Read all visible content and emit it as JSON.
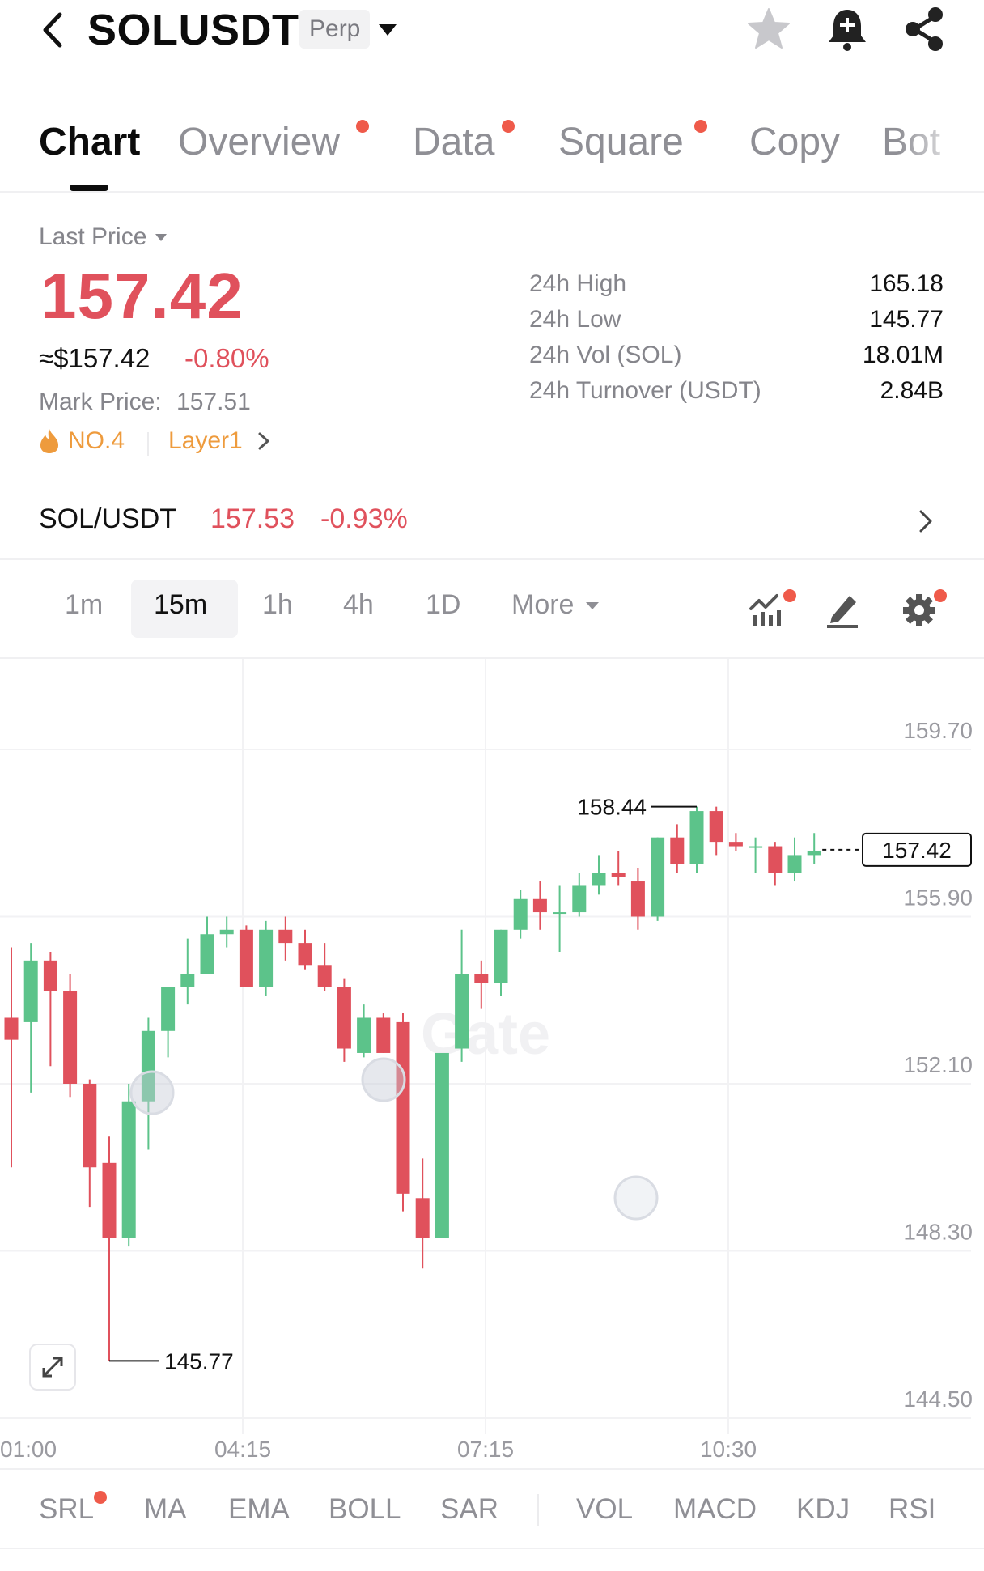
{
  "header": {
    "title": "SOLUSDT",
    "badge": "Perp"
  },
  "tabs": [
    {
      "label": "Chart",
      "active": true,
      "dot": false
    },
    {
      "label": "Overview",
      "active": false,
      "dot": true
    },
    {
      "label": "Data",
      "active": false,
      "dot": true
    },
    {
      "label": "Square",
      "active": false,
      "dot": true
    },
    {
      "label": "Copy",
      "active": false,
      "dot": false
    },
    {
      "label": "Bot",
      "active": false,
      "dot": false
    }
  ],
  "price": {
    "type_label": "Last Price",
    "last": "157.42",
    "approx": "≈$157.42",
    "change": "-0.80%",
    "mark_label": "Mark Price:",
    "mark_value": "157.51",
    "rank": "NO.4",
    "sector": "Layer1"
  },
  "stats": [
    {
      "label": "24h High",
      "value": "165.18"
    },
    {
      "label": "24h Low",
      "value": "145.77"
    },
    {
      "label": "24h Vol (SOL)",
      "value": "18.01M"
    },
    {
      "label": "24h Turnover (USDT)",
      "value": "2.84B"
    }
  ],
  "spot": {
    "pair": "SOL/USDT",
    "price": "157.53",
    "change": "-0.93%"
  },
  "intervals": {
    "items": [
      "1m",
      "15m",
      "1h",
      "4h",
      "1D"
    ],
    "active": "15m",
    "more": "More"
  },
  "chart_data": {
    "type": "candlestick",
    "y_ticks": [
      "159.70",
      "155.90",
      "152.10",
      "148.30",
      "144.50"
    ],
    "x_ticks": [
      "01:00",
      "04:15",
      "07:15",
      "10:30"
    ],
    "ylim": [
      144.5,
      159.7
    ],
    "high_marker": "158.44",
    "low_marker": "145.77",
    "current_price": "157.42",
    "candles": [
      {
        "o": 153.6,
        "h": 155.2,
        "l": 150.2,
        "c": 153.1
      },
      {
        "o": 153.5,
        "h": 155.3,
        "l": 151.9,
        "c": 154.9
      },
      {
        "o": 154.9,
        "h": 155.1,
        "l": 152.5,
        "c": 154.2
      },
      {
        "o": 154.2,
        "h": 154.6,
        "l": 151.8,
        "c": 152.1
      },
      {
        "o": 152.1,
        "h": 152.2,
        "l": 149.3,
        "c": 150.2
      },
      {
        "o": 150.3,
        "h": 150.9,
        "l": 145.8,
        "c": 148.6
      },
      {
        "o": 148.6,
        "h": 152.1,
        "l": 148.4,
        "c": 151.7
      },
      {
        "o": 151.7,
        "h": 153.6,
        "l": 150.6,
        "c": 153.3
      },
      {
        "o": 153.3,
        "h": 154.3,
        "l": 152.7,
        "c": 154.3
      },
      {
        "o": 154.3,
        "h": 155.4,
        "l": 153.9,
        "c": 154.6
      },
      {
        "o": 154.6,
        "h": 155.9,
        "l": 154.6,
        "c": 155.5
      },
      {
        "o": 155.5,
        "h": 155.9,
        "l": 155.2,
        "c": 155.6
      },
      {
        "o": 155.6,
        "h": 155.7,
        "l": 154.3,
        "c": 154.3
      },
      {
        "o": 154.3,
        "h": 155.8,
        "l": 154.1,
        "c": 155.6
      },
      {
        "o": 155.6,
        "h": 155.9,
        "l": 154.9,
        "c": 155.3
      },
      {
        "o": 155.3,
        "h": 155.6,
        "l": 154.7,
        "c": 154.8
      },
      {
        "o": 154.8,
        "h": 155.3,
        "l": 154.2,
        "c": 154.3
      },
      {
        "o": 154.3,
        "h": 154.5,
        "l": 152.6,
        "c": 152.9
      },
      {
        "o": 152.8,
        "h": 153.9,
        "l": 152.7,
        "c": 153.6
      },
      {
        "o": 153.6,
        "h": 153.7,
        "l": 152.8,
        "c": 152.8
      },
      {
        "o": 153.5,
        "h": 153.7,
        "l": 149.2,
        "c": 149.6
      },
      {
        "o": 149.5,
        "h": 150.4,
        "l": 147.9,
        "c": 148.6
      },
      {
        "o": 148.6,
        "h": 152.8,
        "l": 148.6,
        "c": 152.8
      },
      {
        "o": 152.9,
        "h": 155.6,
        "l": 152.6,
        "c": 154.6
      },
      {
        "o": 154.6,
        "h": 154.9,
        "l": 153.8,
        "c": 154.4
      },
      {
        "o": 154.4,
        "h": 155.6,
        "l": 154.1,
        "c": 155.6
      },
      {
        "o": 155.6,
        "h": 156.5,
        "l": 155.4,
        "c": 156.3
      },
      {
        "o": 156.3,
        "h": 156.7,
        "l": 155.6,
        "c": 156.0
      },
      {
        "o": 156.0,
        "h": 156.6,
        "l": 155.1,
        "c": 156.0
      },
      {
        "o": 156.0,
        "h": 156.9,
        "l": 155.9,
        "c": 156.6
      },
      {
        "o": 156.6,
        "h": 157.3,
        "l": 156.4,
        "c": 156.9
      },
      {
        "o": 156.9,
        "h": 157.4,
        "l": 156.6,
        "c": 156.8
      },
      {
        "o": 156.7,
        "h": 157.0,
        "l": 155.6,
        "c": 155.9
      },
      {
        "o": 155.9,
        "h": 157.7,
        "l": 155.8,
        "c": 157.7
      },
      {
        "o": 157.7,
        "h": 158.0,
        "l": 156.9,
        "c": 157.1
      },
      {
        "o": 157.1,
        "h": 158.4,
        "l": 156.9,
        "c": 158.3
      },
      {
        "o": 158.3,
        "h": 158.4,
        "l": 157.3,
        "c": 157.6
      },
      {
        "o": 157.6,
        "h": 157.8,
        "l": 157.4,
        "c": 157.5
      },
      {
        "o": 157.5,
        "h": 157.7,
        "l": 156.9,
        "c": 157.5
      },
      {
        "o": 157.5,
        "h": 157.6,
        "l": 156.6,
        "c": 156.9
      },
      {
        "o": 156.9,
        "h": 157.7,
        "l": 156.7,
        "c": 157.3
      },
      {
        "o": 157.3,
        "h": 157.8,
        "l": 157.1,
        "c": 157.4
      }
    ]
  },
  "watermark": "Gate",
  "indicators": {
    "main": [
      {
        "label": "SRL",
        "dot": true
      },
      {
        "label": "MA",
        "dot": false
      },
      {
        "label": "EMA",
        "dot": false
      },
      {
        "label": "BOLL",
        "dot": false
      },
      {
        "label": "SAR",
        "dot": false
      }
    ],
    "sub": [
      "VOL",
      "MACD",
      "KDJ",
      "RSI"
    ]
  },
  "colors": {
    "up": "#5cc38a",
    "down": "#e0515c",
    "accent_dot": "#ef5a4a",
    "orange": "#ee9b3d"
  }
}
